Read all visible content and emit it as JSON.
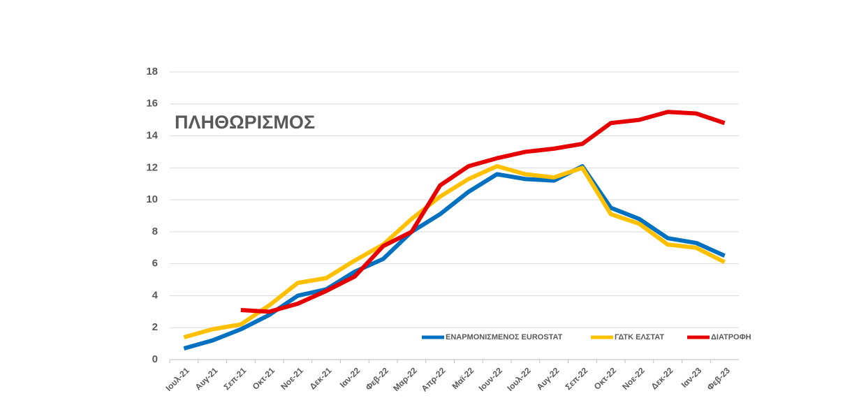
{
  "chart_data": {
    "type": "line",
    "title": "ΠΛΗΘΩΡΙΣΜΟΣ",
    "categories": [
      "Ιουλ-21",
      "Αυγ-21",
      "Σεπ-21",
      "Οκτ-21",
      "Νοε-21",
      "Δεκ-21",
      "Ιαν-22",
      "Φεβ-22",
      "Μαρ-22",
      "Απρ-22",
      "Μαϊ-22",
      "Ιουν-22",
      "Ιουλ-22",
      "Αυγ-22",
      "Σεπ-22",
      "Οκτ-22",
      "Νοε-22",
      "Δεκ-22",
      "Ιαν-23",
      "Φεβ-23"
    ],
    "series": [
      {
        "name": "ΕΝΑΡΜΟΝΙΣΜΕΝΟΣ EUROSTAT",
        "color": "#0070c0",
        "values": [
          0.7,
          1.2,
          1.9,
          2.8,
          4.0,
          4.4,
          5.5,
          6.3,
          8.0,
          9.1,
          10.5,
          11.6,
          11.3,
          11.2,
          12.1,
          9.5,
          8.8,
          7.6,
          7.3,
          6.5
        ]
      },
      {
        "name": "ΓΔΤΚ ΕΛΣΤΑΤ",
        "color": "#ffc000",
        "values": [
          1.4,
          1.9,
          2.2,
          3.4,
          4.8,
          5.1,
          6.2,
          7.2,
          8.8,
          10.2,
          11.3,
          12.1,
          11.6,
          11.4,
          12.0,
          9.1,
          8.5,
          7.2,
          7.0,
          6.1
        ]
      },
      {
        "name": "ΔΙΑΤΡΟΦΗ",
        "color": "#e60000",
        "values": [
          null,
          null,
          3.1,
          3.0,
          3.5,
          4.3,
          5.2,
          7.1,
          8.0,
          10.9,
          12.1,
          12.6,
          13.0,
          13.2,
          13.5,
          14.8,
          15.0,
          15.5,
          15.4,
          14.8
        ]
      }
    ],
    "ylim": [
      0,
      18
    ],
    "yticks": [
      0,
      2,
      4,
      6,
      8,
      10,
      12,
      14,
      16,
      18
    ],
    "grid": true,
    "legend": "bottom-right"
  }
}
